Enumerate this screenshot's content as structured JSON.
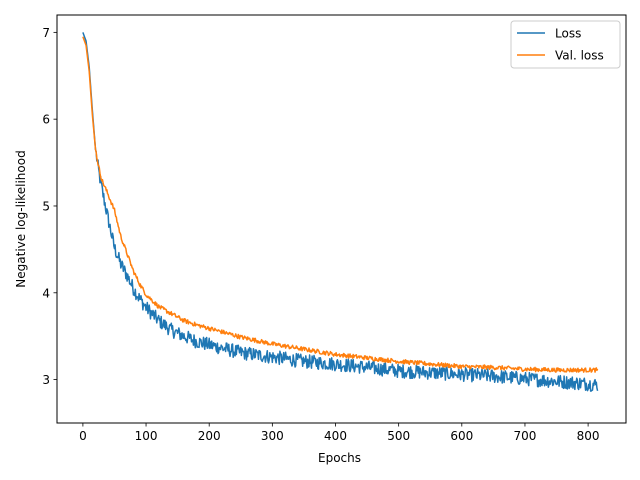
{
  "chart_data": {
    "type": "line",
    "xlabel": "Epochs",
    "ylabel": "Negative log-likelihood",
    "xlim": [
      -41,
      860
    ],
    "ylim": [
      2.5,
      7.2
    ],
    "xticks": [
      0,
      100,
      200,
      300,
      400,
      500,
      600,
      700,
      800
    ],
    "yticks": [
      3,
      4,
      5,
      6,
      7
    ],
    "legend_position": "top-right",
    "grid": false,
    "series": [
      {
        "name": "Loss",
        "color": "#1f77b4",
        "noise": 0.08,
        "x": [
          0,
          5,
          10,
          15,
          20,
          25,
          30,
          40,
          50,
          60,
          70,
          80,
          90,
          100,
          120,
          140,
          160,
          180,
          200,
          250,
          300,
          350,
          400,
          450,
          500,
          550,
          600,
          650,
          700,
          750,
          800,
          815
        ],
        "y": [
          7.0,
          6.9,
          6.6,
          6.1,
          5.65,
          5.4,
          5.2,
          4.85,
          4.52,
          4.33,
          4.2,
          4.05,
          3.93,
          3.83,
          3.68,
          3.57,
          3.5,
          3.44,
          3.4,
          3.31,
          3.26,
          3.21,
          3.18,
          3.14,
          3.1,
          3.08,
          3.06,
          3.04,
          3.01,
          2.98,
          2.95,
          2.94
        ]
      },
      {
        "name": "Val. loss",
        "color": "#ff7f0e",
        "noise": 0.025,
        "x": [
          0,
          5,
          10,
          15,
          20,
          25,
          30,
          40,
          50,
          60,
          70,
          80,
          90,
          100,
          120,
          140,
          160,
          180,
          200,
          250,
          300,
          350,
          400,
          450,
          500,
          550,
          600,
          650,
          700,
          750,
          800,
          815
        ],
        "y": [
          6.95,
          6.85,
          6.55,
          6.05,
          5.65,
          5.45,
          5.3,
          5.13,
          4.95,
          4.65,
          4.45,
          4.25,
          4.1,
          3.98,
          3.84,
          3.76,
          3.68,
          3.63,
          3.59,
          3.49,
          3.41,
          3.35,
          3.29,
          3.25,
          3.21,
          3.18,
          3.15,
          3.14,
          3.12,
          3.11,
          3.11,
          3.11
        ]
      }
    ]
  }
}
